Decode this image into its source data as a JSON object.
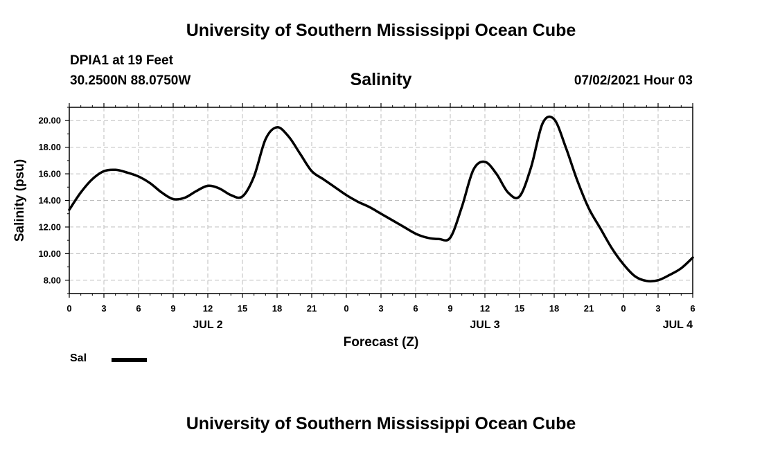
{
  "header": {
    "title_top": "University of Southern Mississippi Ocean Cube",
    "station": "DPIA1 at 19 Feet",
    "coords": "30.2500N  88.0750W",
    "datetime": "07/02/2021 Hour 03",
    "title_bottom": "University of Southern Mississippi Ocean Cube"
  },
  "chart_data": {
    "type": "line",
    "title": "Salinity",
    "xlabel": "Forecast (Z)",
    "ylabel": "Salinity (psu)",
    "ylim": [
      7.0,
      21.0
    ],
    "xlim": [
      0,
      54
    ],
    "grid": true,
    "y_ticks": [
      8,
      10,
      12,
      14,
      16,
      18,
      20
    ],
    "y_tick_labels": [
      "8.00",
      "10.00",
      "12.00",
      "14.00",
      "16.00",
      "18.00",
      "20.00"
    ],
    "x_ticks": [
      0,
      3,
      6,
      9,
      12,
      15,
      18,
      21,
      24,
      27,
      30,
      33,
      36,
      39,
      42,
      45,
      48,
      51,
      54
    ],
    "x_tick_labels": [
      "0",
      "3",
      "6",
      "9",
      "12",
      "15",
      "18",
      "21",
      "0",
      "3",
      "6",
      "9",
      "12",
      "15",
      "18",
      "21",
      "0",
      "3",
      "6"
    ],
    "day_labels": [
      {
        "x": 12,
        "label": "JUL 2"
      },
      {
        "x": 36,
        "label": "JUL 3"
      },
      {
        "x": 52.7,
        "label": "JUL 4"
      }
    ],
    "legend": {
      "label": "Sal",
      "position": "bottom-left"
    },
    "series": [
      {
        "name": "Sal",
        "color": "#000000",
        "x": [
          0,
          1,
          2,
          3,
          4,
          5,
          6,
          7,
          8,
          9,
          10,
          11,
          12,
          13,
          14,
          15,
          16,
          17,
          18,
          19,
          20,
          21,
          22,
          23,
          24,
          25,
          26,
          27,
          28,
          29,
          30,
          31,
          32,
          33,
          34,
          35,
          36,
          37,
          38,
          39,
          40,
          41,
          42,
          43,
          44,
          45,
          46,
          47,
          48,
          49,
          50,
          51,
          52,
          53,
          54
        ],
        "values": [
          13.3,
          14.6,
          15.6,
          16.2,
          16.3,
          16.1,
          15.8,
          15.3,
          14.6,
          14.1,
          14.2,
          14.7,
          15.1,
          14.9,
          14.4,
          14.3,
          15.8,
          18.6,
          19.5,
          18.8,
          17.5,
          16.2,
          15.6,
          15.0,
          14.4,
          13.9,
          13.5,
          13.0,
          12.5,
          12.0,
          11.5,
          11.2,
          11.1,
          11.2,
          13.5,
          16.3,
          16.9,
          16.0,
          14.6,
          14.3,
          16.5,
          19.8,
          20.1,
          18.0,
          15.5,
          13.4,
          11.9,
          10.4,
          9.2,
          8.3,
          7.95,
          8.0,
          8.4,
          8.9,
          9.7
        ]
      }
    ]
  }
}
